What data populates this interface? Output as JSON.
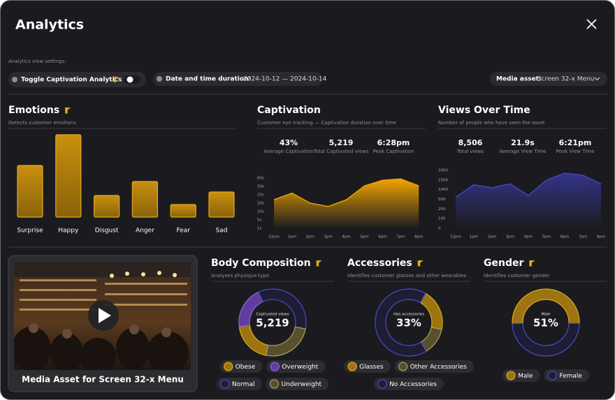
{
  "header": {
    "title": "Analytics"
  },
  "settings": {
    "label": "Analytics view settings:",
    "toggle": "Toggle Captivation Analytics",
    "date_label": "Date and time duration:",
    "date_value": "2024-10-12 — 2024-10-14",
    "media_label": "Media asset:",
    "media_value": "Screen 32-x Menu"
  },
  "emotions": {
    "type": "bar",
    "title": "Emotions",
    "subtitle": "Detects customer emotions",
    "categories": [
      "Surprise",
      "Happy",
      "Disgust",
      "Anger",
      "Fear",
      "Sad"
    ],
    "values": [
      74,
      118,
      31,
      51,
      18,
      36
    ],
    "color": "#b07e0c"
  },
  "captivation": {
    "type": "area",
    "title": "Captivation",
    "subtitle": "Customer eye tracking — Captivation duration over time",
    "stats": [
      {
        "value": "43%",
        "label": "Average Captivation"
      },
      {
        "value": "5,219",
        "label": "Total Captivated views"
      },
      {
        "value": "6:28pm",
        "label": "Peak Captivation"
      }
    ],
    "categories": [
      "12pm",
      "1pm",
      "2pm",
      "3pm",
      "4pm",
      "5pm",
      "6pm",
      "7pm",
      "8pm"
    ],
    "values": [
      22,
      26,
      20,
      16,
      22,
      32,
      52,
      57,
      32
    ],
    "ylim": [
      1,
      60
    ],
    "yticks": [
      {
        "value": 1,
        "label": "1s"
      },
      {
        "value": 5,
        "label": "5s"
      },
      {
        "value": 10,
        "label": "10s"
      },
      {
        "value": 20,
        "label": "20s"
      },
      {
        "value": 25,
        "label": "25s"
      },
      {
        "value": 30,
        "label": "30s"
      },
      {
        "value": 60,
        "label": "60s"
      }
    ],
    "color": "#f2a500"
  },
  "views_over_time": {
    "type": "area",
    "title": "Views Over Time",
    "subtitle": "Number of people who have seen the asset",
    "stats": [
      {
        "value": "8,506",
        "label": "Total views"
      },
      {
        "value": "21.9s",
        "label": "Average View Time"
      },
      {
        "value": "6:21pm",
        "label": "Peak View Time"
      }
    ],
    "categories": [
      "12pm",
      "1pm",
      "2pm",
      "3pm",
      "4pm",
      "5pm",
      "6pm",
      "7pm",
      "8pm"
    ],
    "values": [
      600,
      1250,
      1100,
      1300,
      700,
      1500,
      1850,
      1750,
      1300
    ],
    "ylim": [
      0,
      2000
    ],
    "yticks": [
      0,
      100,
      250,
      500,
      1000,
      1500,
      2000
    ],
    "color": "#4646c0"
  },
  "media": {
    "caption": "Media Asset for Screen 32-x Menu"
  },
  "body_composition": {
    "type": "donut",
    "title": "Body Composition",
    "subtitle": "Analyzes physique type",
    "center_label": "Captivated views",
    "center_value": "5,219",
    "categories": [
      "Obese",
      "Overweight",
      "Normal",
      "Underweight"
    ],
    "values": [
      20,
      20,
      35,
      25
    ],
    "colors": [
      "#9c7410",
      "#5e3e9c",
      "#1d1d33",
      "#57502e"
    ],
    "edges": [
      "#d9a420",
      "#8a62d8",
      "#4a46c8",
      "#a8975a"
    ]
  },
  "accessories": {
    "type": "donut",
    "title": "Accessories",
    "subtitle": "Identifies customer glasses and other wearables",
    "center_label": "Has accessories",
    "center_value": "33%",
    "categories": [
      "Glasses",
      "Other Accessories",
      "No Accessories"
    ],
    "values": [
      20,
      13,
      67
    ],
    "colors": [
      "#9c7410",
      "#57502e",
      "#1d1d33"
    ],
    "edges": [
      "#d9a420",
      "#a8975a",
      "#4a46c8"
    ]
  },
  "gender": {
    "type": "donut",
    "title": "Gender",
    "subtitle": "Identifies customer gender",
    "center_label": "Male",
    "center_value": "51%",
    "categories": [
      "Male",
      "Female"
    ],
    "values": [
      51,
      49
    ],
    "colors": [
      "#9c7410",
      "#1d1d33"
    ],
    "edges": [
      "#d9a420",
      "#4a46c8"
    ]
  }
}
